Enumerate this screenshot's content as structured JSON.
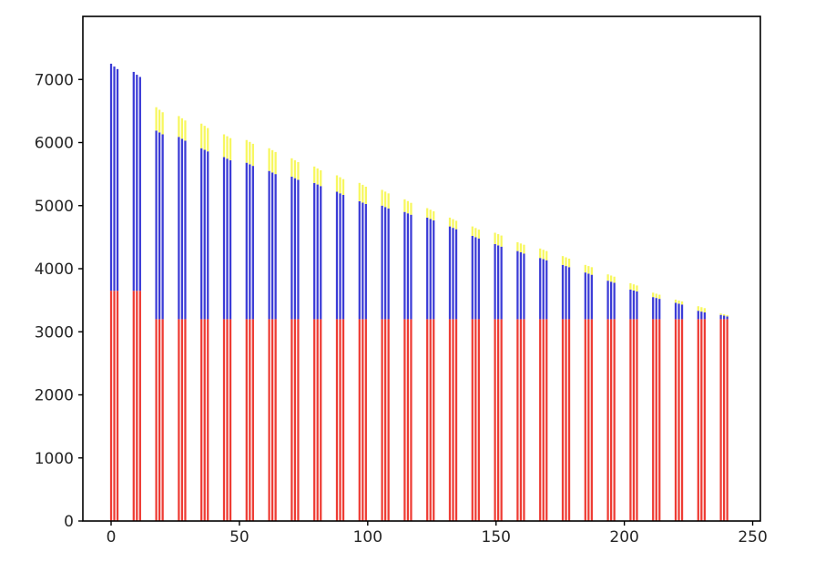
{
  "chart_data": {
    "type": "bar",
    "stacked": true,
    "title": "",
    "xlabel": "",
    "ylabel": "",
    "legend": null,
    "grid": false,
    "background_color": "#ffffff",
    "spine_color": "#000000",
    "tick_label_color": "#262626",
    "xlim": [
      -11,
      253
    ],
    "ylim": [
      0,
      8000
    ],
    "xticks": [
      0,
      50,
      100,
      150,
      200,
      250
    ],
    "yticks": [
      0,
      1000,
      2000,
      3000,
      4000,
      5000,
      6000,
      7000
    ],
    "series_colors": {
      "red": "#ee3b33",
      "blue": "#3b3bd6",
      "yellow": "#f7f75e"
    },
    "bars_per_cluster": 3,
    "bar_offset": 1.25,
    "bar_width": 0.8,
    "segment_order": [
      "red",
      "blue",
      "yellow"
    ],
    "clusters": [
      {
        "x": 0.0,
        "red": 3650,
        "blue": [
          7250,
          7205,
          7165
        ],
        "total": [
          7250,
          7205,
          7165
        ]
      },
      {
        "x": 8.8,
        "red": 3650,
        "blue": [
          7120,
          7075,
          7040
        ],
        "total": [
          7120,
          7075,
          7040
        ]
      },
      {
        "x": 17.6,
        "red": 3200,
        "blue": [
          6190,
          6160,
          6130
        ],
        "total": [
          6560,
          6520,
          6480
        ]
      },
      {
        "x": 26.4,
        "red": 3200,
        "blue": [
          6090,
          6060,
          6030
        ],
        "total": [
          6420,
          6385,
          6350
        ]
      },
      {
        "x": 35.2,
        "red": 3200,
        "blue": [
          5910,
          5885,
          5860
        ],
        "total": [
          6300,
          6265,
          6230
        ]
      },
      {
        "x": 44.0,
        "red": 3200,
        "blue": [
          5770,
          5745,
          5720
        ],
        "total": [
          6130,
          6100,
          6070
        ]
      },
      {
        "x": 52.8,
        "red": 3200,
        "blue": [
          5680,
          5655,
          5630
        ],
        "total": [
          6040,
          6010,
          5980
        ]
      },
      {
        "x": 61.6,
        "red": 3200,
        "blue": [
          5550,
          5525,
          5500
        ],
        "total": [
          5910,
          5880,
          5850
        ]
      },
      {
        "x": 70.4,
        "red": 3200,
        "blue": [
          5460,
          5435,
          5410
        ],
        "total": [
          5750,
          5720,
          5690
        ]
      },
      {
        "x": 79.2,
        "red": 3200,
        "blue": [
          5360,
          5335,
          5310
        ],
        "total": [
          5620,
          5590,
          5560
        ]
      },
      {
        "x": 88.0,
        "red": 3200,
        "blue": [
          5220,
          5195,
          5170
        ],
        "total": [
          5480,
          5450,
          5420
        ]
      },
      {
        "x": 96.8,
        "red": 3200,
        "blue": [
          5070,
          5048,
          5026
        ],
        "total": [
          5360,
          5330,
          5300
        ]
      },
      {
        "x": 105.6,
        "red": 3200,
        "blue": [
          5000,
          4978,
          4956
        ],
        "total": [
          5250,
          5222,
          5194
        ]
      },
      {
        "x": 114.4,
        "red": 3200,
        "blue": [
          4900,
          4878,
          4856
        ],
        "total": [
          5100,
          5072,
          5044
        ]
      },
      {
        "x": 123.2,
        "red": 3200,
        "blue": [
          4810,
          4788,
          4766
        ],
        "total": [
          4960,
          4935,
          4910
        ]
      },
      {
        "x": 132.0,
        "red": 3200,
        "blue": [
          4670,
          4648,
          4626
        ],
        "total": [
          4810,
          4785,
          4760
        ]
      },
      {
        "x": 140.8,
        "red": 3200,
        "blue": [
          4520,
          4500,
          4480
        ],
        "total": [
          4670,
          4645,
          4620
        ]
      },
      {
        "x": 149.6,
        "red": 3200,
        "blue": [
          4390,
          4370,
          4350
        ],
        "total": [
          4570,
          4548,
          4526
        ]
      },
      {
        "x": 158.4,
        "red": 3200,
        "blue": [
          4280,
          4260,
          4240
        ],
        "total": [
          4420,
          4400,
          4380
        ]
      },
      {
        "x": 167.2,
        "red": 3200,
        "blue": [
          4170,
          4152,
          4134
        ],
        "total": [
          4320,
          4300,
          4280
        ]
      },
      {
        "x": 176.0,
        "red": 3200,
        "blue": [
          4060,
          4042,
          4024
        ],
        "total": [
          4200,
          4180,
          4160
        ]
      },
      {
        "x": 184.8,
        "red": 3200,
        "blue": [
          3940,
          3922,
          3904
        ],
        "total": [
          4060,
          4042,
          4024
        ]
      },
      {
        "x": 193.6,
        "red": 3200,
        "blue": [
          3810,
          3794,
          3778
        ],
        "total": [
          3910,
          3892,
          3874
        ]
      },
      {
        "x": 202.4,
        "red": 3200,
        "blue": [
          3670,
          3655,
          3640
        ],
        "total": [
          3770,
          3752,
          3734
        ]
      },
      {
        "x": 211.2,
        "red": 3200,
        "blue": [
          3550,
          3536,
          3522
        ],
        "total": [
          3620,
          3604,
          3588
        ]
      },
      {
        "x": 220.0,
        "red": 3200,
        "blue": [
          3460,
          3446,
          3432
        ],
        "total": [
          3510,
          3496,
          3482
        ]
      },
      {
        "x": 228.8,
        "red": 3200,
        "blue": [
          3333,
          3320,
          3307
        ],
        "total": [
          3405,
          3390,
          3375
        ]
      },
      {
        "x": 237.6,
        "red": 3200,
        "blue": [
          3268,
          3256,
          3244
        ],
        "total": [
          3290,
          3278,
          3266
        ]
      }
    ]
  }
}
